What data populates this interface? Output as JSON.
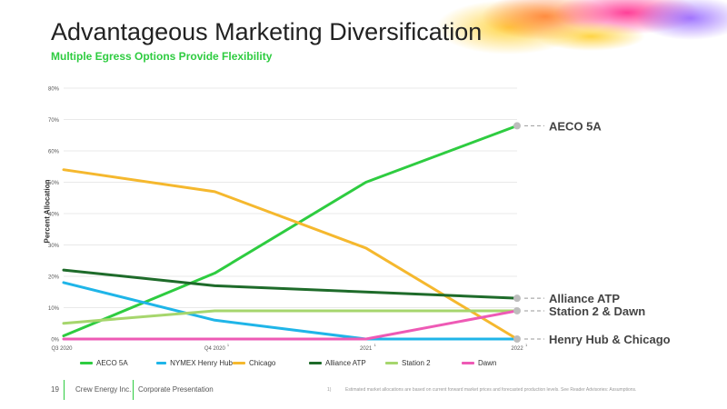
{
  "slide": {
    "title": "Advantageous Marketing Diversification",
    "subtitle": "Multiple Egress Options Provide Flexibility"
  },
  "footer": {
    "page_number": "19",
    "company": "Crew Energy Inc.",
    "presentation": "Corporate Presentation",
    "note_number": "1)",
    "note": "Estimated market allocations are based on current forward market prices and forecasted production levels. See Reader Advisories: Assumptions."
  },
  "chart_data": {
    "type": "line",
    "ylabel": "Percent Allocation",
    "xlabel": "",
    "ylim": [
      0,
      80
    ],
    "yticks": [
      "0%",
      "10%",
      "20%",
      "30%",
      "40%",
      "50%",
      "60%",
      "70%",
      "80%"
    ],
    "grid": true,
    "legend_position": "bottom",
    "categories": [
      "Q3 2020",
      "Q4 2020",
      "2021",
      "2022"
    ],
    "category_footnotes": [
      "",
      "1",
      "1",
      "1"
    ],
    "series": [
      {
        "name": "AECO 5A",
        "color": "#2ecc40",
        "values": [
          1,
          21,
          50,
          68
        ]
      },
      {
        "name": "NYMEX Henry Hub",
        "color": "#1fb5e8",
        "values": [
          18,
          6,
          0,
          0
        ]
      },
      {
        "name": "Chicago",
        "color": "#f5b82e",
        "values": [
          54,
          47,
          29,
          0
        ]
      },
      {
        "name": "Alliance ATP",
        "color": "#1e6b2a",
        "values": [
          22,
          17,
          15,
          13
        ]
      },
      {
        "name": "Station 2",
        "color": "#a6d66d",
        "values": [
          5,
          9,
          9,
          9
        ]
      },
      {
        "name": "Dawn",
        "color": "#ee5ab5",
        "values": [
          0,
          0,
          0,
          9
        ]
      }
    ],
    "callouts": [
      {
        "label": "AECO 5A",
        "value": 68
      },
      {
        "label": "Alliance ATP",
        "value": 13
      },
      {
        "label": "Station 2 & Dawn",
        "value": 9
      },
      {
        "label": "Henry Hub & Chicago",
        "value": 0
      }
    ]
  }
}
